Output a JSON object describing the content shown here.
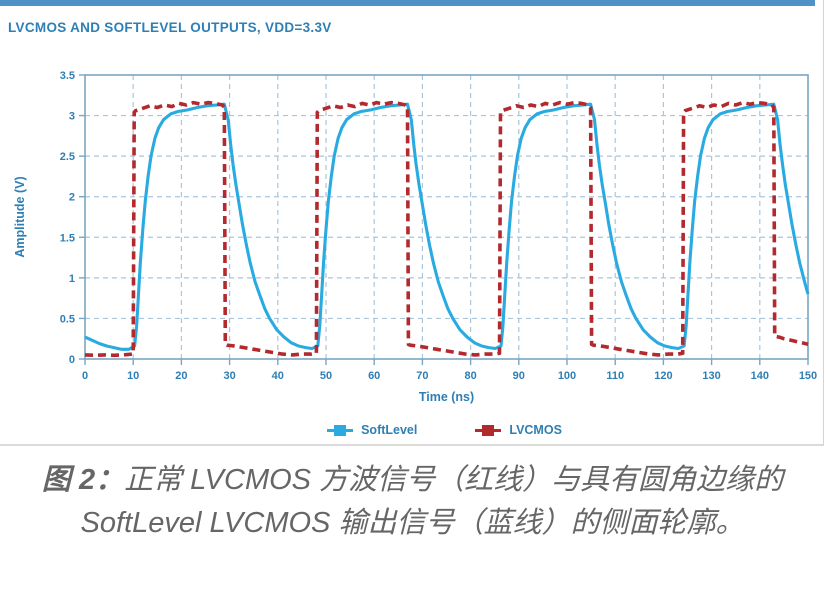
{
  "figure": {
    "title": "LVCMOS AND SOFTLEVEL OUTPUTS, VDD=3.3V"
  },
  "chart_data": {
    "type": "line",
    "title": "LVCMOS AND SOFTLEVEL OUTPUTS, VDD=3.3V",
    "xlabel": "Time (ns)",
    "ylabel": "Amplitude (V)",
    "xlim": [
      0,
      150
    ],
    "ylim": [
      0,
      3.5
    ],
    "xticks": [
      0,
      10,
      20,
      30,
      40,
      50,
      60,
      70,
      80,
      90,
      100,
      110,
      120,
      130,
      140,
      150
    ],
    "yticks": [
      0,
      0.5,
      1,
      1.5,
      2,
      2.5,
      3,
      3.5
    ],
    "grid": true,
    "legend_position": "bottom",
    "series": [
      {
        "name": "SoftLevel",
        "color": "#29abe2",
        "style": "solid",
        "points": [
          [
            0,
            0.27
          ],
          [
            1.5,
            0.23
          ],
          [
            3,
            0.19
          ],
          [
            4.5,
            0.16
          ],
          [
            6,
            0.14
          ],
          [
            7.5,
            0.12
          ],
          [
            9.1,
            0.12
          ],
          [
            10.3,
            0.16
          ],
          [
            10.7,
            0.4
          ],
          [
            11.1,
            0.8
          ],
          [
            11.5,
            1.2
          ],
          [
            12,
            1.6
          ],
          [
            12.5,
            1.95
          ],
          [
            13.1,
            2.25
          ],
          [
            13.7,
            2.5
          ],
          [
            14.5,
            2.72
          ],
          [
            15.3,
            2.85
          ],
          [
            16.3,
            2.95
          ],
          [
            17.8,
            3.02
          ],
          [
            19.3,
            3.05
          ],
          [
            21.3,
            3.07
          ],
          [
            23.3,
            3.1
          ],
          [
            25.3,
            3.12
          ],
          [
            27.3,
            3.13
          ],
          [
            28.9,
            3.14
          ],
          [
            29.7,
            2.95
          ],
          [
            30.2,
            2.65
          ],
          [
            30.7,
            2.4
          ],
          [
            31.3,
            2.15
          ],
          [
            32,
            1.9
          ],
          [
            32.7,
            1.65
          ],
          [
            33.5,
            1.4
          ],
          [
            34.3,
            1.18
          ],
          [
            35.3,
            0.95
          ],
          [
            36.3,
            0.78
          ],
          [
            37.3,
            0.62
          ],
          [
            38.3,
            0.5
          ],
          [
            39.8,
            0.36
          ],
          [
            41.3,
            0.27
          ],
          [
            42.8,
            0.2
          ],
          [
            44.3,
            0.16
          ],
          [
            45.8,
            0.14
          ],
          [
            47.1,
            0.13
          ],
          [
            48.3,
            0.16
          ],
          [
            48.7,
            0.4
          ],
          [
            49.1,
            0.8
          ],
          [
            49.5,
            1.2
          ],
          [
            50,
            1.6
          ],
          [
            50.5,
            1.95
          ],
          [
            51.1,
            2.25
          ],
          [
            51.7,
            2.5
          ],
          [
            52.5,
            2.72
          ],
          [
            53.3,
            2.85
          ],
          [
            54.3,
            2.95
          ],
          [
            55.8,
            3.02
          ],
          [
            57.3,
            3.05
          ],
          [
            59.3,
            3.07
          ],
          [
            61.3,
            3.1
          ],
          [
            63.3,
            3.12
          ],
          [
            65.3,
            3.13
          ],
          [
            66.9,
            3.14
          ],
          [
            67.7,
            2.95
          ],
          [
            68.2,
            2.65
          ],
          [
            68.7,
            2.4
          ],
          [
            69.3,
            2.15
          ],
          [
            70,
            1.9
          ],
          [
            70.7,
            1.65
          ],
          [
            71.5,
            1.4
          ],
          [
            72.3,
            1.18
          ],
          [
            73.3,
            0.95
          ],
          [
            74.3,
            0.78
          ],
          [
            75.3,
            0.62
          ],
          [
            76.3,
            0.5
          ],
          [
            77.8,
            0.36
          ],
          [
            79.3,
            0.27
          ],
          [
            80.8,
            0.2
          ],
          [
            82.3,
            0.16
          ],
          [
            83.8,
            0.14
          ],
          [
            85.1,
            0.13
          ],
          [
            86.3,
            0.16
          ],
          [
            86.7,
            0.4
          ],
          [
            87.1,
            0.8
          ],
          [
            87.5,
            1.2
          ],
          [
            88,
            1.6
          ],
          [
            88.5,
            1.95
          ],
          [
            89.1,
            2.25
          ],
          [
            89.7,
            2.5
          ],
          [
            90.5,
            2.72
          ],
          [
            91.3,
            2.85
          ],
          [
            92.3,
            2.95
          ],
          [
            93.8,
            3.02
          ],
          [
            95.3,
            3.05
          ],
          [
            97.3,
            3.07
          ],
          [
            99.3,
            3.1
          ],
          [
            101.3,
            3.12
          ],
          [
            103.3,
            3.13
          ],
          [
            104.9,
            3.14
          ],
          [
            105.7,
            2.95
          ],
          [
            106.2,
            2.65
          ],
          [
            106.7,
            2.4
          ],
          [
            107.3,
            2.15
          ],
          [
            108,
            1.9
          ],
          [
            108.7,
            1.65
          ],
          [
            109.5,
            1.4
          ],
          [
            110.3,
            1.18
          ],
          [
            111.3,
            0.95
          ],
          [
            112.3,
            0.78
          ],
          [
            113.3,
            0.62
          ],
          [
            114.3,
            0.5
          ],
          [
            115.8,
            0.36
          ],
          [
            117.3,
            0.27
          ],
          [
            118.8,
            0.2
          ],
          [
            120.3,
            0.16
          ],
          [
            121.8,
            0.14
          ],
          [
            123.1,
            0.13
          ],
          [
            124.3,
            0.16
          ],
          [
            124.7,
            0.4
          ],
          [
            125.1,
            0.8
          ],
          [
            125.5,
            1.2
          ],
          [
            126,
            1.6
          ],
          [
            126.5,
            1.95
          ],
          [
            127.1,
            2.25
          ],
          [
            127.7,
            2.5
          ],
          [
            128.5,
            2.72
          ],
          [
            129.3,
            2.85
          ],
          [
            130.3,
            2.95
          ],
          [
            131.8,
            3.02
          ],
          [
            133.3,
            3.05
          ],
          [
            135.3,
            3.07
          ],
          [
            137.3,
            3.1
          ],
          [
            139.3,
            3.12
          ],
          [
            141.3,
            3.13
          ],
          [
            142.9,
            3.14
          ],
          [
            143.7,
            2.95
          ],
          [
            144.2,
            2.65
          ],
          [
            144.7,
            2.4
          ],
          [
            145.3,
            2.15
          ],
          [
            146,
            1.9
          ],
          [
            146.7,
            1.65
          ],
          [
            147.5,
            1.4
          ],
          [
            148.3,
            1.18
          ],
          [
            149.3,
            0.95
          ],
          [
            150,
            0.8
          ]
        ]
      },
      {
        "name": "LVCMOS",
        "color": "#b2292e",
        "style": "dashed",
        "points": [
          [
            0,
            0.05
          ],
          [
            2,
            0.045
          ],
          [
            4,
            0.05
          ],
          [
            6,
            0.045
          ],
          [
            8,
            0.05
          ],
          [
            9.8,
            0.06
          ],
          [
            10,
            0.06
          ],
          [
            10.2,
            3.04
          ],
          [
            10.5,
            3.06
          ],
          [
            12,
            3.09
          ],
          [
            13.5,
            3.12
          ],
          [
            15,
            3.1
          ],
          [
            16.5,
            3.13
          ],
          [
            18,
            3.11
          ],
          [
            19.5,
            3.15
          ],
          [
            21,
            3.13
          ],
          [
            22.5,
            3.16
          ],
          [
            24,
            3.14
          ],
          [
            25.5,
            3.16
          ],
          [
            27,
            3.15
          ],
          [
            28.5,
            3.13
          ],
          [
            28.9,
            3.1
          ],
          [
            29.1,
            0.18
          ],
          [
            29.5,
            0.17
          ],
          [
            31,
            0.16
          ],
          [
            33,
            0.14
          ],
          [
            35,
            0.12
          ],
          [
            37,
            0.1
          ],
          [
            39,
            0.08
          ],
          [
            41,
            0.06
          ],
          [
            43,
            0.05
          ],
          [
            45,
            0.06
          ],
          [
            47,
            0.06
          ],
          [
            47.9,
            0.07
          ],
          [
            48,
            0.07
          ],
          [
            48.2,
            3.04
          ],
          [
            48.5,
            3.06
          ],
          [
            50,
            3.09
          ],
          [
            51.5,
            3.12
          ],
          [
            53,
            3.1
          ],
          [
            54.5,
            3.13
          ],
          [
            56,
            3.11
          ],
          [
            57.5,
            3.15
          ],
          [
            59,
            3.13
          ],
          [
            60.5,
            3.16
          ],
          [
            62,
            3.14
          ],
          [
            63.5,
            3.16
          ],
          [
            65,
            3.15
          ],
          [
            66.5,
            3.13
          ],
          [
            66.9,
            3.1
          ],
          [
            67.1,
            0.18
          ],
          [
            67.5,
            0.17
          ],
          [
            69,
            0.16
          ],
          [
            71,
            0.14
          ],
          [
            73,
            0.12
          ],
          [
            75,
            0.1
          ],
          [
            77,
            0.08
          ],
          [
            79,
            0.06
          ],
          [
            81,
            0.05
          ],
          [
            83,
            0.06
          ],
          [
            85,
            0.06
          ],
          [
            85.9,
            0.07
          ],
          [
            86,
            0.07
          ],
          [
            86.2,
            3.04
          ],
          [
            86.5,
            3.06
          ],
          [
            88,
            3.09
          ],
          [
            89.5,
            3.12
          ],
          [
            91,
            3.1
          ],
          [
            92.5,
            3.13
          ],
          [
            94,
            3.11
          ],
          [
            95.5,
            3.15
          ],
          [
            97,
            3.13
          ],
          [
            98.5,
            3.16
          ],
          [
            100,
            3.14
          ],
          [
            101.5,
            3.16
          ],
          [
            103,
            3.15
          ],
          [
            104.5,
            3.13
          ],
          [
            104.9,
            3.1
          ],
          [
            105.1,
            0.18
          ],
          [
            105.5,
            0.17
          ],
          [
            107,
            0.16
          ],
          [
            109,
            0.14
          ],
          [
            111,
            0.12
          ],
          [
            113,
            0.1
          ],
          [
            115,
            0.08
          ],
          [
            117,
            0.06
          ],
          [
            119,
            0.05
          ],
          [
            121,
            0.06
          ],
          [
            123,
            0.06
          ],
          [
            123.9,
            0.07
          ],
          [
            124,
            0.07
          ],
          [
            124.2,
            3.04
          ],
          [
            124.5,
            3.06
          ],
          [
            126,
            3.09
          ],
          [
            127.5,
            3.12
          ],
          [
            129,
            3.1
          ],
          [
            130.5,
            3.13
          ],
          [
            132,
            3.11
          ],
          [
            133.5,
            3.15
          ],
          [
            135,
            3.13
          ],
          [
            136.5,
            3.16
          ],
          [
            138,
            3.14
          ],
          [
            139.5,
            3.16
          ],
          [
            141,
            3.15
          ],
          [
            142.5,
            3.13
          ],
          [
            142.9,
            3.1
          ],
          [
            143.1,
            0.28
          ],
          [
            144,
            0.27
          ],
          [
            145,
            0.25
          ],
          [
            146.5,
            0.23
          ],
          [
            148,
            0.21
          ],
          [
            149.5,
            0.19
          ],
          [
            150,
            0.18
          ]
        ]
      }
    ]
  },
  "colors": {
    "accent_bar": "#4f93c6",
    "axis_text": "#2e7fb5",
    "grid": "#a9c6dc",
    "plot_border": "#7aa6c2",
    "softlevel": "#29abe2",
    "lvcmos": "#b2292e",
    "divider": "#dadada",
    "caption_text": "#666666"
  },
  "caption": {
    "prefix": "图 2：",
    "text": "正常 LVCMOS 方波信号（红线）与具有圆角边缘的 SoftLevel LVCMOS 输出信号（蓝线）的侧面轮廓。"
  }
}
